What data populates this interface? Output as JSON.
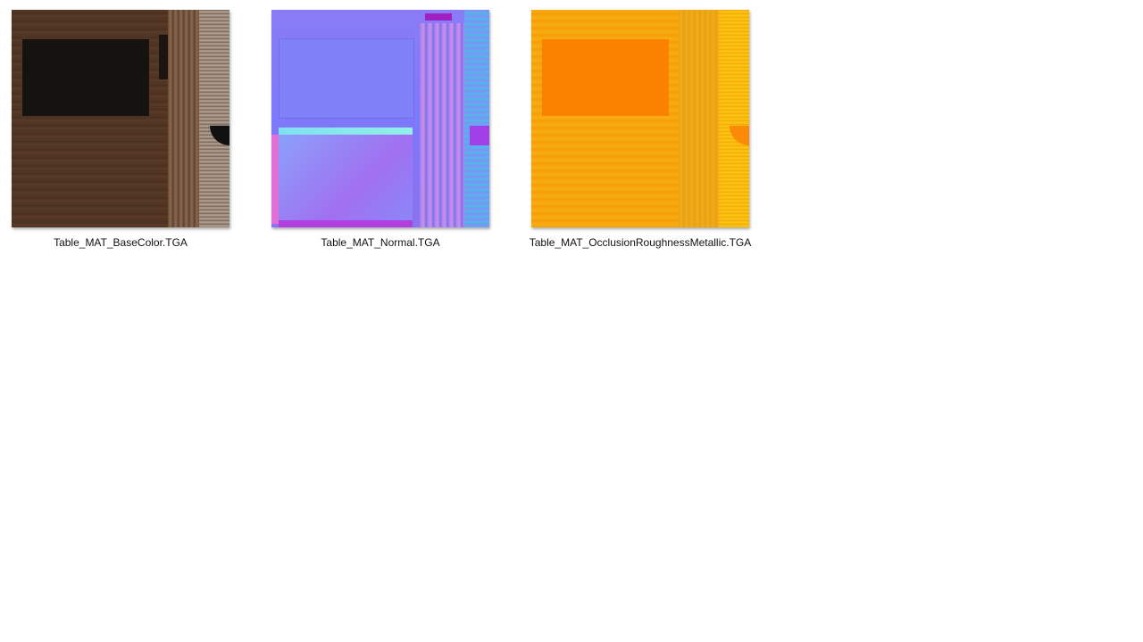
{
  "files": [
    {
      "name": "Table_MAT_BaseColor.TGA",
      "thumbnail": "base-color-texture"
    },
    {
      "name": "Table_MAT_Normal.TGA",
      "thumbnail": "normal-map-texture"
    },
    {
      "name": "Table_MAT_OcclusionRoughnessMetallic.TGA",
      "thumbnail": "orm-texture"
    }
  ],
  "colors": {
    "base": "#553826",
    "normal": "#7f7bfa",
    "orm": "#f7a50d"
  }
}
